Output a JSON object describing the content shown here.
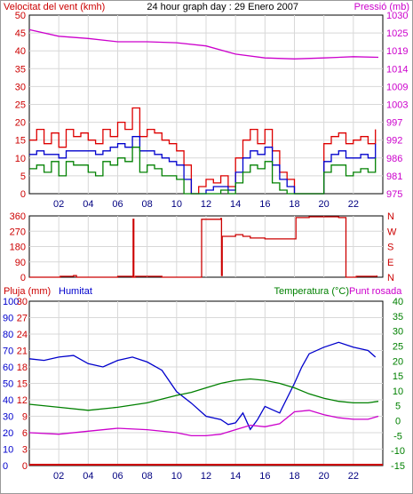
{
  "chart_data": [
    {
      "type": "line",
      "title": "24 hour graph day : 29 Enero 2007",
      "left_axis_label": "Velocitat del vent (kmh)",
      "right_axis_label": "Pressió (mb)",
      "x_ticks": [
        "02",
        "04",
        "06",
        "08",
        "10",
        "12",
        "14",
        "16",
        "18",
        "20",
        "22"
      ],
      "left_ticks": [
        "0",
        "5",
        "10",
        "15",
        "20",
        "25",
        "30",
        "35",
        "40",
        "45",
        "50"
      ],
      "right_ticks": [
        "975",
        "981",
        "986",
        "992",
        "997",
        "1003",
        "1009",
        "1014",
        "1019",
        "1025",
        "1030"
      ],
      "xlim": [
        0,
        24
      ],
      "ylim_left": [
        0,
        50
      ],
      "ylim_right": [
        975,
        1030
      ],
      "series": [
        {
          "color": "#cc00cc",
          "axis": "right",
          "x": [
            0,
            2,
            4,
            6,
            8,
            10,
            12,
            14,
            16,
            18,
            20,
            22,
            23.7
          ],
          "values": [
            1025.5,
            1023.5,
            1022.8,
            1021.8,
            1021.8,
            1021.5,
            1020.5,
            1018.0,
            1016.8,
            1016.5,
            1016.8,
            1017.2,
            1017.0
          ]
        },
        {
          "color": "#dd0000",
          "axis": "left",
          "x": [
            0,
            0.5,
            1,
            1.5,
            2,
            2.5,
            3,
            3.5,
            4,
            4.5,
            5,
            5.5,
            6,
            6.5,
            7,
            7.5,
            8,
            8.5,
            9,
            9.5,
            10,
            10.5,
            11,
            11.5,
            12,
            12.5,
            13,
            13.5,
            14,
            14.5,
            15,
            15.5,
            16,
            16.5,
            17,
            17.5,
            18,
            18.5,
            19,
            19.5,
            20,
            20.5,
            21,
            21.5,
            22,
            22.5,
            23,
            23.5
          ],
          "values": [
            15,
            18,
            14,
            17,
            13,
            18,
            16,
            17,
            15,
            14,
            18,
            16,
            20,
            18,
            24,
            16,
            18,
            17,
            15,
            14,
            12,
            8,
            0,
            2,
            4,
            3,
            5,
            2,
            10,
            15,
            18,
            14,
            18,
            12,
            6,
            4,
            0,
            0,
            0,
            0,
            14,
            16,
            17,
            14,
            15,
            16,
            14,
            18
          ]
        },
        {
          "color": "#0000cc",
          "axis": "left",
          "x": [
            0,
            0.5,
            1,
            1.5,
            2,
            2.5,
            3,
            3.5,
            4,
            4.5,
            5,
            5.5,
            6,
            6.5,
            7,
            7.5,
            8,
            8.5,
            9,
            9.5,
            10,
            10.5,
            11,
            11.5,
            12,
            12.5,
            13,
            13.5,
            14,
            14.5,
            15,
            15.5,
            16,
            16.5,
            17,
            17.5,
            18,
            18.5,
            19,
            19.5,
            20,
            20.5,
            21,
            21.5,
            22,
            22.5,
            23,
            23.5
          ],
          "values": [
            11,
            12,
            11,
            11,
            10,
            12,
            12,
            12,
            12,
            11,
            12,
            13,
            14,
            13,
            16,
            12,
            12,
            11,
            10,
            9,
            8,
            4,
            0,
            0,
            1,
            2,
            2,
            1,
            6,
            10,
            12,
            11,
            13,
            8,
            4,
            2,
            0,
            0,
            0,
            0,
            9,
            11,
            12,
            10,
            10,
            11,
            10,
            14
          ]
        },
        {
          "color": "#008000",
          "axis": "left",
          "x": [
            0,
            0.5,
            1,
            1.5,
            2,
            2.5,
            3,
            3.5,
            4,
            4.5,
            5,
            5.5,
            6,
            6.5,
            7,
            7.5,
            8,
            8.5,
            9,
            9.5,
            10,
            10.5,
            11,
            11.5,
            12,
            12.5,
            13,
            13.5,
            14,
            14.5,
            15,
            15.5,
            16,
            16.5,
            17,
            17.5,
            18,
            18.5,
            19,
            19.5,
            20,
            20.5,
            21,
            21.5,
            22,
            22.5,
            23,
            23.5
          ],
          "values": [
            7,
            8,
            6,
            9,
            5,
            9,
            8,
            8,
            6,
            5,
            9,
            8,
            10,
            9,
            13,
            6,
            8,
            7,
            5,
            5,
            4,
            0,
            0,
            0,
            0,
            0,
            1,
            0,
            3,
            6,
            8,
            7,
            9,
            3,
            1,
            0,
            0,
            0,
            0,
            0,
            6,
            8,
            8,
            5,
            6,
            7,
            6,
            10
          ]
        }
      ]
    },
    {
      "type": "line",
      "left_ticks": [
        "360",
        "270",
        "180",
        "90",
        "0"
      ],
      "right_ticks": [
        "N",
        "W",
        "S",
        "E",
        "N"
      ],
      "xlim": [
        0,
        24
      ],
      "ylim_left": [
        0,
        360
      ],
      "series": [
        {
          "color": "#cc0000",
          "axis": "left",
          "x": [
            0,
            2,
            2.1,
            3,
            3.2,
            4,
            6,
            7,
            7.05,
            7.1,
            7.2,
            9,
            11,
            11.6,
            11.7,
            13,
            13.05,
            13.1,
            14,
            14.5,
            15,
            16,
            17,
            18,
            18.1,
            19,
            20,
            21,
            21.5,
            22,
            22.2,
            23,
            23.6
          ],
          "values": [
            0,
            0,
            5,
            10,
            0,
            0,
            5,
            0,
            340,
            0,
            5,
            0,
            0,
            0,
            340,
            345,
            10,
            240,
            250,
            240,
            230,
            225,
            225,
            225,
            350,
            355,
            355,
            350,
            0,
            0,
            5,
            5,
            10
          ]
        }
      ]
    },
    {
      "type": "line",
      "labels": [
        "Pluja (mm)",
        "Humitat",
        "Temperatura (°C)",
        "Punt rosada"
      ],
      "x_ticks": [
        "02",
        "04",
        "06",
        "08",
        "10",
        "12",
        "14",
        "16",
        "18",
        "20",
        "22"
      ],
      "rain_ticks": [
        "30",
        "27",
        "24",
        "21",
        "18",
        "15",
        "12",
        "9",
        "6",
        "3",
        "0"
      ],
      "humidity_ticks": [
        "100",
        "90",
        "80",
        "70",
        "60",
        "50",
        "40",
        "30",
        "20",
        "10",
        "0"
      ],
      "temp_ticks": [
        "40",
        "35",
        "30",
        "25",
        "20",
        "15",
        "10",
        "5",
        "0",
        "-5",
        "-10",
        "-15"
      ],
      "xlim": [
        0,
        24
      ],
      "ylim_humidity": [
        0,
        100
      ],
      "ylim_temp": [
        -15,
        40
      ],
      "series": [
        {
          "name": "Humitat",
          "color": "#0000cc",
          "axis": "humidity",
          "x": [
            0,
            1,
            2,
            3,
            4,
            5,
            6,
            7,
            8,
            9,
            10,
            11,
            12,
            13,
            13.5,
            14,
            14.5,
            15,
            15.5,
            16,
            17,
            18,
            18.5,
            19,
            20,
            21,
            22,
            23,
            23.5
          ],
          "values": [
            65,
            64,
            66,
            67,
            62,
            60,
            64,
            66,
            63,
            58,
            45,
            38,
            30,
            28,
            25,
            26,
            32,
            22,
            28,
            36,
            32,
            50,
            60,
            68,
            72,
            75,
            72,
            70,
            66
          ]
        },
        {
          "name": "Temperatura",
          "color": "#008000",
          "axis": "temp",
          "x": [
            0,
            2,
            4,
            6,
            8,
            10,
            11,
            12,
            13,
            14,
            15,
            16,
            17,
            18,
            19,
            20,
            21,
            22,
            23,
            23.7
          ],
          "values": [
            5.5,
            4.5,
            3.5,
            4.5,
            6,
            8.5,
            9.5,
            11,
            12.5,
            13.5,
            14,
            13.5,
            12.5,
            11,
            9,
            7.5,
            6.5,
            6,
            6,
            6.5
          ]
        },
        {
          "name": "Punt rosada",
          "color": "#cc00cc",
          "axis": "temp",
          "x": [
            0,
            2,
            4,
            6,
            8,
            10,
            11,
            12,
            13,
            14,
            15,
            16,
            17,
            18,
            19,
            20,
            21,
            22,
            23,
            23.7
          ],
          "values": [
            -4,
            -4.5,
            -3.5,
            -2.5,
            -3,
            -4,
            -5,
            -5,
            -4.5,
            -3,
            -1.5,
            -2,
            -1,
            3,
            3.5,
            2,
            1,
            0.5,
            0.5,
            1.5
          ]
        }
      ]
    }
  ]
}
